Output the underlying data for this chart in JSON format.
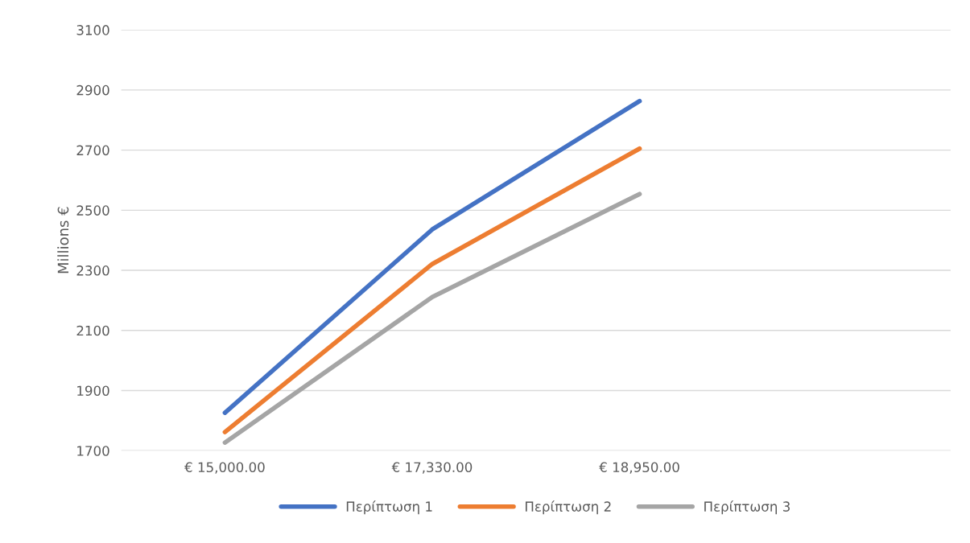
{
  "chart_data": {
    "type": "line",
    "ylabel": "Millions €",
    "categories": [
      "€ 15,000.00",
      "€ 17,330.00",
      "€ 18,950.00",
      null
    ],
    "series": [
      {
        "name": "Περίπτωση 1",
        "color": "#4472c4",
        "values": [
          1826,
          2436,
          2863,
          null
        ]
      },
      {
        "name": "Περίπτωση 2",
        "color": "#ed7d31",
        "values": [
          1762,
          2321,
          2705,
          null
        ]
      },
      {
        "name": "Περίπτωση 3",
        "color": "#a5a5a5",
        "values": [
          1727,
          2211,
          2554,
          null
        ]
      }
    ],
    "ylim": [
      1700,
      3100
    ],
    "yticks": [
      1700,
      1900,
      2100,
      2300,
      2500,
      2700,
      2900,
      3100
    ],
    "grid": "y",
    "legend": "bottom",
    "marker": "none",
    "line_style": "solid"
  }
}
